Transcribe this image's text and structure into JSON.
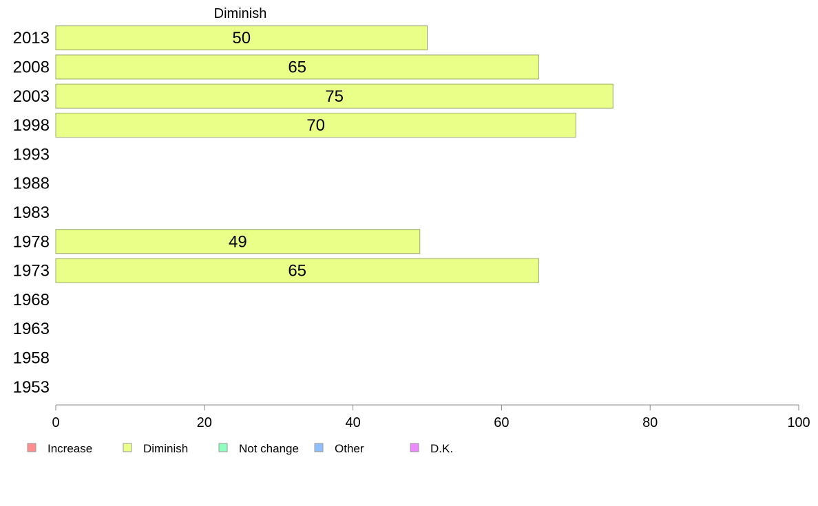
{
  "chart_data": {
    "type": "bar",
    "orientation": "horizontal",
    "categories": [
      "2013",
      "2008",
      "2003",
      "1998",
      "1993",
      "1988",
      "1983",
      "1978",
      "1973",
      "1968",
      "1963",
      "1958",
      "1953"
    ],
    "series": [
      {
        "name": "Diminish",
        "color": "#eaff88",
        "values": [
          50,
          65,
          75,
          70,
          null,
          null,
          null,
          49,
          65,
          null,
          null,
          null,
          null
        ]
      }
    ],
    "xlim": [
      0,
      100
    ],
    "xticks": [
      0,
      20,
      40,
      60,
      80,
      100
    ],
    "grid": false,
    "legend": {
      "placement": "bottom",
      "entries": [
        {
          "name": "Increase",
          "color": "#ff8f8f"
        },
        {
          "name": "Diminish",
          "color": "#eaff88"
        },
        {
          "name": "Not change",
          "color": "#8fffc0"
        },
        {
          "name": "Other",
          "color": "#8fbfff"
        },
        {
          "name": "D.K.",
          "color": "#ee88ff"
        }
      ]
    }
  }
}
